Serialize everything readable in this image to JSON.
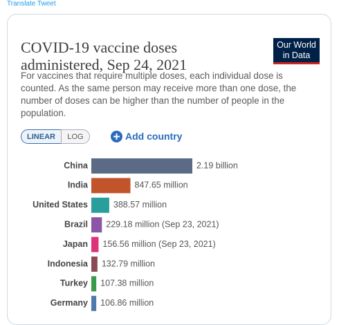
{
  "tweet": {
    "translate": "Translate Tweet"
  },
  "chart_data": {
    "type": "bar",
    "orientation": "horizontal",
    "title": "COVID-19 vaccine doses administered, Sep 24, 2021",
    "subtitle": "For vaccines that require multiple doses, each individual dose is counted. As the same person may receive more than one dose, the number of doses can be higher than the number of people in the population.",
    "logo": "Our World in Data",
    "scale_buttons": [
      "LINEAR",
      "LOG"
    ],
    "add_country": "Add country",
    "categories": [
      "China",
      "India",
      "United States",
      "Brazil",
      "Japan",
      "Indonesia",
      "Turkey",
      "Germany"
    ],
    "values": [
      2190,
      847.65,
      388.57,
      229.18,
      156.56,
      132.79,
      107.38,
      106.86
    ],
    "value_labels": [
      "2.19 billion",
      "847.65 million",
      "388.57 million",
      "229.18 million (Sep 23, 2021)",
      "156.56 million (Sep 23, 2021)",
      "132.79 million",
      "107.38 million",
      "106.86 million"
    ],
    "colors": [
      "#5b6b85",
      "#c1542b",
      "#2a9e9b",
      "#8c55a6",
      "#de3379",
      "#8a4a56",
      "#3a9a4b",
      "#5079ad"
    ]
  }
}
